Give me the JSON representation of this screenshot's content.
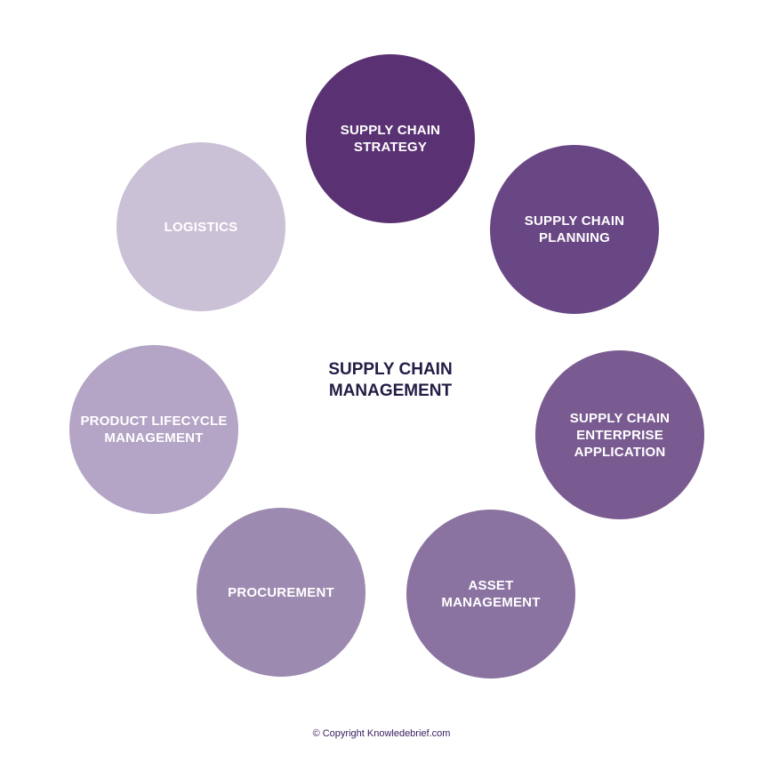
{
  "center": {
    "title": "SUPPLY CHAIN\nMANAGEMENT"
  },
  "nodes": [
    {
      "label": "SUPPLY CHAIN\nSTRATEGY",
      "color": "#5a3273"
    },
    {
      "label": "SUPPLY CHAIN\nPLANNING",
      "color": "#694784"
    },
    {
      "label": "SUPPLY CHAIN\nENTERPRISE\nAPPLICATION",
      "color": "#7a5b91"
    },
    {
      "label": "ASSET\nMANAGEMENT",
      "color": "#8b73a1"
    },
    {
      "label": "PROCUREMENT",
      "color": "#9d8ab1"
    },
    {
      "label": "PRODUCT LIFECYCLE\nMANAGEMENT",
      "color": "#b4a5c6"
    },
    {
      "label": "LOGISTICS",
      "color": "#cbc1d7"
    }
  ],
  "footer": {
    "copyright": "© Copyright Knowledebrief.com"
  }
}
